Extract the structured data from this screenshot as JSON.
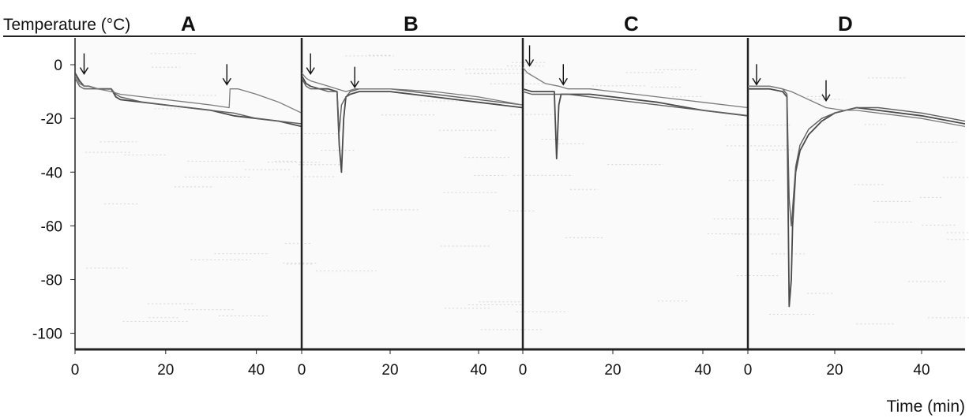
{
  "figure": {
    "ylabel": "Temperature (°C)",
    "xlabel": "Time (min)"
  },
  "chart_data": [
    {
      "type": "line",
      "panel_label": "A",
      "xlim": [
        0,
        50
      ],
      "ylim": [
        -106,
        10
      ],
      "x_ticks": [
        0,
        20,
        40
      ],
      "y_ticks": [
        0,
        -20,
        -40,
        -60,
        -80,
        -100
      ],
      "series": [
        {
          "x": [
            0,
            1,
            2,
            3,
            5,
            8,
            9,
            10,
            15,
            20,
            25,
            30,
            35,
            40,
            45,
            50
          ],
          "y": [
            -3,
            -6,
            -8,
            -8,
            -9,
            -9,
            -12,
            -13,
            -14,
            -15,
            -16,
            -17,
            -19,
            -20,
            -21,
            -23
          ]
        },
        {
          "x": [
            0,
            1,
            2,
            3,
            5,
            8,
            9,
            10,
            15,
            20,
            25,
            30,
            35,
            40,
            45,
            50
          ],
          "y": [
            -5,
            -8,
            -9,
            -9,
            -9,
            -9,
            -11,
            -12,
            -14,
            -15,
            -16,
            -17,
            -18,
            -20,
            -21,
            -22
          ]
        },
        {
          "x": [
            0,
            1,
            2,
            3,
            5,
            8,
            10,
            15,
            20,
            25,
            30,
            34,
            34.2,
            36,
            40,
            45,
            50
          ],
          "y": [
            -4,
            -7,
            -8,
            -8,
            -9,
            -10,
            -11,
            -12,
            -13,
            -14,
            -15,
            -16,
            -9,
            -9,
            -11,
            -14,
            -18
          ]
        }
      ],
      "arrows": [
        {
          "x": 2,
          "y": -4
        },
        {
          "x": 33.5,
          "y": -8
        }
      ]
    },
    {
      "type": "line",
      "panel_label": "B",
      "xlim": [
        0,
        50
      ],
      "ylim": [
        -106,
        10
      ],
      "x_ticks": [
        0,
        20,
        40
      ],
      "y_ticks": [],
      "series": [
        {
          "x": [
            0,
            1,
            2,
            4,
            6,
            8,
            8.5,
            9,
            9.5,
            10,
            11,
            13,
            15,
            20,
            30,
            40,
            50
          ],
          "y": [
            -4,
            -7,
            -8,
            -9,
            -9,
            -10,
            -30,
            -40,
            -20,
            -12,
            -11,
            -10,
            -10,
            -10,
            -12,
            -14,
            -16
          ]
        },
        {
          "x": [
            0,
            1,
            2,
            4,
            6,
            8,
            8.5,
            9,
            10,
            11,
            13,
            15,
            20,
            30,
            40,
            50
          ],
          "y": [
            -5,
            -8,
            -9,
            -9,
            -10,
            -10,
            -25,
            -15,
            -12,
            -10,
            -9,
            -9,
            -9,
            -11,
            -13,
            -15
          ]
        },
        {
          "x": [
            0,
            1,
            2,
            4,
            6,
            8,
            10,
            12,
            15,
            20,
            30,
            40,
            50
          ],
          "y": [
            -3,
            -5,
            -6,
            -7,
            -8,
            -9,
            -10,
            -9,
            -9,
            -9,
            -10,
            -12,
            -15
          ]
        }
      ],
      "arrows": [
        {
          "x": 2,
          "y": -4
        },
        {
          "x": 12,
          "y": -9
        }
      ]
    },
    {
      "type": "line",
      "panel_label": "C",
      "xlim": [
        0,
        50
      ],
      "ylim": [
        -106,
        10
      ],
      "x_ticks": [
        0,
        20,
        40
      ],
      "y_ticks": [],
      "series": [
        {
          "x": [
            0,
            2,
            5,
            7,
            7.5,
            8,
            8.5,
            10,
            15,
            20,
            30,
            40,
            50
          ],
          "y": [
            -9,
            -10,
            -10,
            -10,
            -35,
            -15,
            -11,
            -11,
            -11,
            -12,
            -14,
            -17,
            -19
          ]
        },
        {
          "x": [
            0,
            2,
            5,
            8,
            10,
            15,
            20,
            30,
            40,
            50
          ],
          "y": [
            -10,
            -11,
            -11,
            -11,
            -11,
            -12,
            -13,
            -15,
            -17,
            -19
          ]
        },
        {
          "x": [
            0,
            1,
            3,
            5,
            8,
            10,
            15,
            20,
            30,
            40,
            50
          ],
          "y": [
            -1,
            -3,
            -5,
            -7,
            -8,
            -9,
            -9,
            -10,
            -12,
            -14,
            -16
          ]
        }
      ],
      "arrows": [
        {
          "x": 1.5,
          "y": -1
        },
        {
          "x": 9,
          "y": -8
        }
      ]
    },
    {
      "type": "line",
      "panel_label": "D",
      "xlim": [
        0,
        50
      ],
      "ylim": [
        -106,
        10
      ],
      "x_ticks": [
        0,
        20,
        40
      ],
      "y_ticks": [],
      "series": [
        {
          "x": [
            0,
            2,
            5,
            8,
            9,
            9.5,
            10,
            10.3,
            11,
            12,
            14,
            17,
            20,
            25,
            30,
            40,
            50
          ],
          "y": [
            -9,
            -9,
            -9,
            -10,
            -12,
            -90,
            -80,
            -60,
            -40,
            -32,
            -26,
            -21,
            -18,
            -16,
            -17,
            -19,
            -22
          ]
        },
        {
          "x": [
            0,
            2,
            5,
            8,
            9,
            9.5,
            10,
            11,
            12,
            14,
            17,
            20,
            25,
            30,
            40,
            50
          ],
          "y": [
            -8,
            -8,
            -8,
            -9,
            -11,
            -50,
            -60,
            -38,
            -30,
            -24,
            -20,
            -18,
            -16,
            -16,
            -18,
            -21
          ]
        },
        {
          "x": [
            0,
            2,
            5,
            8,
            10,
            14,
            18,
            22,
            25,
            30,
            40,
            50
          ],
          "y": [
            -8,
            -8,
            -8,
            -9,
            -10,
            -13,
            -16,
            -17,
            -17,
            -18,
            -20,
            -23
          ]
        }
      ],
      "arrows": [
        {
          "x": 2,
          "y": -8
        },
        {
          "x": 18,
          "y": -14
        }
      ]
    }
  ]
}
